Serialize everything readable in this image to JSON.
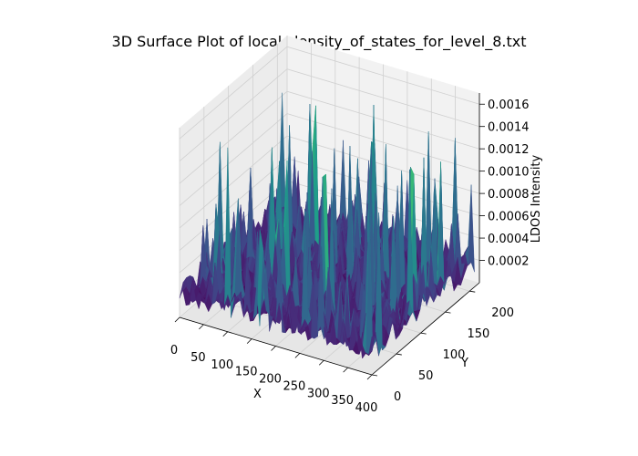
{
  "chart_data": {
    "type": "surface3d",
    "title": "3D Surface Plot of local_density_of_states_for_level_8.txt",
    "xlabel": "X",
    "ylabel": "Y",
    "zlabel": "LDOS Intensity",
    "x_ticks": [
      "0",
      "50",
      "100",
      "150",
      "200",
      "250",
      "300",
      "350",
      "400"
    ],
    "y_ticks": [
      "0",
      "50",
      "100",
      "150",
      "200"
    ],
    "z_ticks": [
      "0.0002",
      "0.0004",
      "0.0006",
      "0.0008",
      "0.0010",
      "0.0012",
      "0.0014",
      "0.0016"
    ],
    "xlim": [
      0,
      400
    ],
    "ylim": [
      0,
      220
    ],
    "zlim": [
      0.0,
      0.0017
    ],
    "colormap": "viridis",
    "grid": true,
    "pane_color": "#f2f2f2"
  }
}
